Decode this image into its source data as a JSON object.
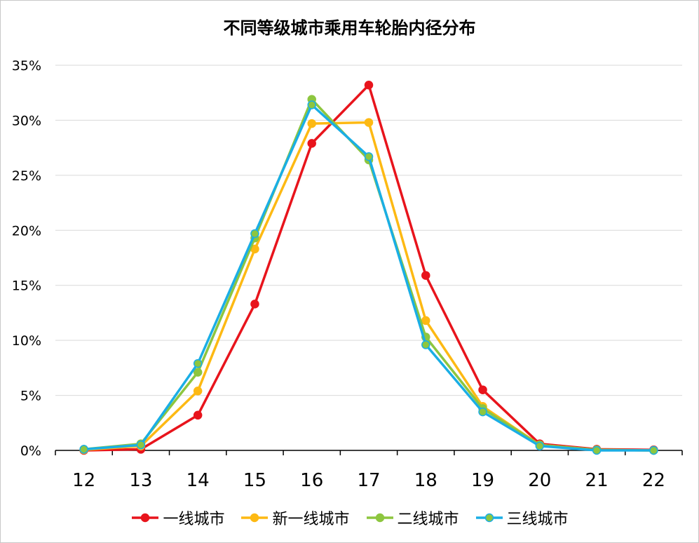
{
  "chart_data": {
    "type": "line",
    "title": "不同等级城市乘用车轮胎内径分布",
    "xlabel": "",
    "ylabel": "",
    "categories": [
      "12",
      "13",
      "14",
      "15",
      "16",
      "17",
      "18",
      "19",
      "20",
      "21",
      "22"
    ],
    "ylim": [
      0,
      35
    ],
    "yticks": [
      0,
      5,
      10,
      15,
      20,
      25,
      30,
      35
    ],
    "ytick_labels": [
      "0%",
      "5%",
      "10%",
      "15%",
      "20%",
      "25%",
      "30%",
      "35%"
    ],
    "grid": true,
    "legend_position": "bottom",
    "series": [
      {
        "name": "一线城市",
        "color": "#e8141c",
        "marker_fill": "#e8141c",
        "values": [
          0.0,
          0.1,
          3.2,
          13.3,
          27.9,
          33.2,
          15.9,
          5.5,
          0.6,
          0.1,
          0.05
        ]
      },
      {
        "name": "新一线城市",
        "color": "#fdb913",
        "marker_fill": "#fdb913",
        "values": [
          0.05,
          0.4,
          5.4,
          18.3,
          29.7,
          29.8,
          11.8,
          4.0,
          0.5,
          0.05,
          0.0
        ]
      },
      {
        "name": "二线城市",
        "color": "#8dc63f",
        "marker_fill": "#8dc63f",
        "values": [
          0.1,
          0.6,
          7.1,
          19.3,
          31.9,
          26.4,
          10.3,
          3.8,
          0.5,
          0.05,
          0.0
        ]
      },
      {
        "name": "三线城市",
        "color": "#1aaee5",
        "marker_fill": "#8dc63f",
        "values": [
          0.1,
          0.5,
          7.9,
          19.7,
          31.4,
          26.7,
          9.6,
          3.5,
          0.4,
          0.0,
          0.0
        ]
      }
    ]
  }
}
